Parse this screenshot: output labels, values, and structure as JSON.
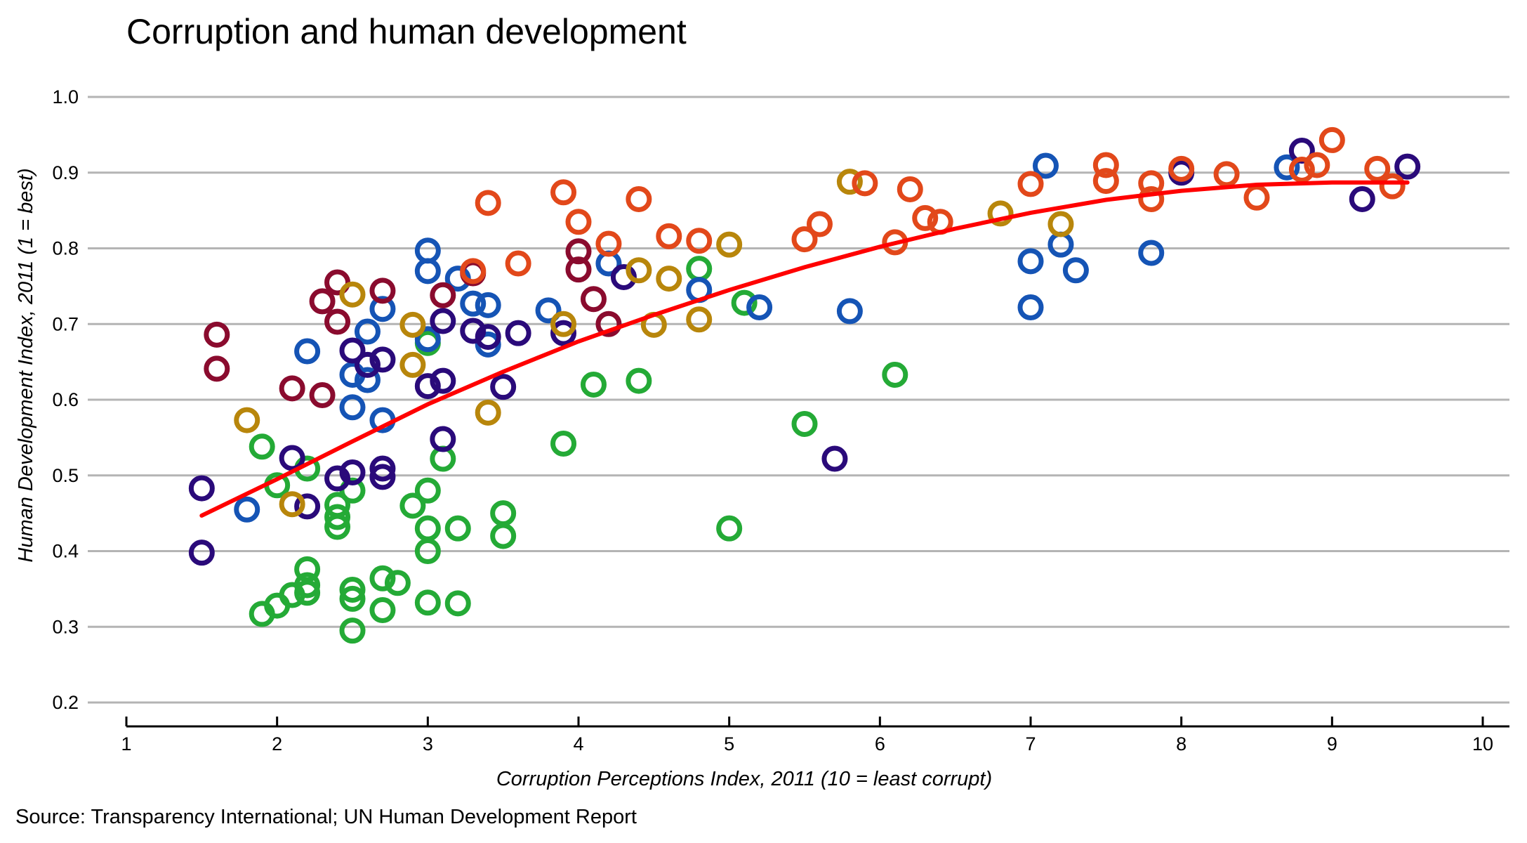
{
  "chart_data": {
    "type": "scatter",
    "title": "Corruption and human development",
    "xlabel": "Corruption Perceptions Index, 2011 (10 = least corrupt)",
    "ylabel": "Human Development Index, 2011 (1 = best)",
    "source": "Source: Transparency International; UN Human Development Report",
    "xlim": [
      1,
      10
    ],
    "ylim": [
      0.2,
      1.0
    ],
    "x_ticks": [
      1,
      2,
      3,
      4,
      5,
      6,
      7,
      8,
      9,
      10
    ],
    "y_ticks": [
      0.2,
      0.3,
      0.4,
      0.5,
      0.6,
      0.7,
      0.8,
      0.9,
      1.0
    ],
    "y_tick_labels": [
      "0.2",
      "0.3",
      "0.4",
      "0.5",
      "0.6",
      "0.7",
      "0.8",
      "0.9",
      "1.0"
    ],
    "grid": "horizontal",
    "series": [
      {
        "color": "#24AA36",
        "points": [
          [
            1.9,
            0.317
          ],
          [
            2.0,
            0.328
          ],
          [
            2.1,
            0.342
          ],
          [
            2.2,
            0.345
          ],
          [
            2.2,
            0.355
          ],
          [
            2.2,
            0.376
          ],
          [
            1.9,
            0.538
          ],
          [
            2.0,
            0.487
          ],
          [
            2.2,
            0.509
          ],
          [
            2.4,
            0.432
          ],
          [
            2.4,
            0.445
          ],
          [
            2.4,
            0.461
          ],
          [
            2.5,
            0.295
          ],
          [
            2.5,
            0.337
          ],
          [
            2.5,
            0.349
          ],
          [
            2.5,
            0.48
          ],
          [
            2.7,
            0.322
          ],
          [
            2.7,
            0.364
          ],
          [
            2.8,
            0.358
          ],
          [
            2.9,
            0.46
          ],
          [
            3.0,
            0.43
          ],
          [
            3.0,
            0.4
          ],
          [
            3.0,
            0.332
          ],
          [
            3.0,
            0.48
          ],
          [
            3.1,
            0.522
          ],
          [
            3.2,
            0.43
          ],
          [
            3.2,
            0.331
          ],
          [
            3.5,
            0.42
          ],
          [
            3.5,
            0.45
          ],
          [
            3.9,
            0.542
          ],
          [
            4.1,
            0.62
          ],
          [
            4.4,
            0.625
          ],
          [
            4.8,
            0.773
          ],
          [
            5.0,
            0.43
          ],
          [
            5.1,
            0.728
          ],
          [
            5.5,
            0.568
          ],
          [
            6.1,
            0.633
          ],
          [
            3.0,
            0.675
          ]
        ]
      },
      {
        "color": "#1554B5",
        "points": [
          [
            1.8,
            0.455
          ],
          [
            2.2,
            0.664
          ],
          [
            2.5,
            0.59
          ],
          [
            2.5,
            0.633
          ],
          [
            2.6,
            0.626
          ],
          [
            2.6,
            0.69
          ],
          [
            2.7,
            0.573
          ],
          [
            2.7,
            0.72
          ],
          [
            3.0,
            0.797
          ],
          [
            3.0,
            0.77
          ],
          [
            3.0,
            0.68
          ],
          [
            3.2,
            0.76
          ],
          [
            3.3,
            0.727
          ],
          [
            3.4,
            0.725
          ],
          [
            3.4,
            0.673
          ],
          [
            3.8,
            0.718
          ],
          [
            4.2,
            0.78
          ],
          [
            4.8,
            0.745
          ],
          [
            5.2,
            0.722
          ],
          [
            5.8,
            0.717
          ],
          [
            7.0,
            0.783
          ],
          [
            7.0,
            0.722
          ],
          [
            7.1,
            0.909
          ],
          [
            7.2,
            0.805
          ],
          [
            7.3,
            0.771
          ],
          [
            7.8,
            0.794
          ],
          [
            8.7,
            0.907
          ]
        ]
      },
      {
        "color": "#2A0A7A",
        "points": [
          [
            1.5,
            0.483
          ],
          [
            1.5,
            0.398
          ],
          [
            2.1,
            0.523
          ],
          [
            2.2,
            0.459
          ],
          [
            2.4,
            0.496
          ],
          [
            2.5,
            0.504
          ],
          [
            2.5,
            0.665
          ],
          [
            2.6,
            0.646
          ],
          [
            2.7,
            0.498
          ],
          [
            2.7,
            0.509
          ],
          [
            2.7,
            0.653
          ],
          [
            3.0,
            0.618
          ],
          [
            3.1,
            0.548
          ],
          [
            3.1,
            0.625
          ],
          [
            3.1,
            0.704
          ],
          [
            3.3,
            0.691
          ],
          [
            3.4,
            0.683
          ],
          [
            3.5,
            0.617
          ],
          [
            3.6,
            0.688
          ],
          [
            3.9,
            0.688
          ],
          [
            4.3,
            0.762
          ],
          [
            5.7,
            0.522
          ],
          [
            8.0,
            0.9
          ],
          [
            8.8,
            0.929
          ],
          [
            9.2,
            0.865
          ],
          [
            9.5,
            0.908
          ]
        ]
      },
      {
        "color": "#8A0B2E",
        "points": [
          [
            1.6,
            0.686
          ],
          [
            1.6,
            0.641
          ],
          [
            2.1,
            0.615
          ],
          [
            2.3,
            0.606
          ],
          [
            2.3,
            0.73
          ],
          [
            2.4,
            0.703
          ],
          [
            2.4,
            0.755
          ],
          [
            2.7,
            0.744
          ],
          [
            3.1,
            0.738
          ],
          [
            3.3,
            0.767
          ],
          [
            4.0,
            0.796
          ],
          [
            4.0,
            0.772
          ],
          [
            4.1,
            0.733
          ],
          [
            4.2,
            0.7
          ]
        ]
      },
      {
        "color": "#B8860B",
        "points": [
          [
            1.8,
            0.573
          ],
          [
            2.1,
            0.462
          ],
          [
            2.5,
            0.739
          ],
          [
            2.9,
            0.646
          ],
          [
            2.9,
            0.699
          ],
          [
            3.4,
            0.583
          ],
          [
            3.9,
            0.7
          ],
          [
            4.4,
            0.771
          ],
          [
            4.5,
            0.699
          ],
          [
            4.6,
            0.76
          ],
          [
            4.8,
            0.706
          ],
          [
            5.0,
            0.805
          ],
          [
            5.8,
            0.888
          ],
          [
            6.8,
            0.846
          ],
          [
            7.2,
            0.832
          ]
        ]
      },
      {
        "color": "#E2481A",
        "points": [
          [
            3.3,
            0.77
          ],
          [
            3.4,
            0.86
          ],
          [
            3.6,
            0.78
          ],
          [
            3.9,
            0.874
          ],
          [
            4.0,
            0.835
          ],
          [
            4.2,
            0.806
          ],
          [
            4.4,
            0.865
          ],
          [
            4.6,
            0.816
          ],
          [
            4.8,
            0.81
          ],
          [
            5.5,
            0.812
          ],
          [
            5.6,
            0.832
          ],
          [
            5.9,
            0.886
          ],
          [
            6.1,
            0.808
          ],
          [
            6.2,
            0.878
          ],
          [
            6.3,
            0.84
          ],
          [
            6.4,
            0.835
          ],
          [
            7.0,
            0.885
          ],
          [
            7.5,
            0.91
          ],
          [
            7.5,
            0.889
          ],
          [
            7.8,
            0.886
          ],
          [
            7.8,
            0.865
          ],
          [
            8.0,
            0.905
          ],
          [
            8.3,
            0.898
          ],
          [
            8.5,
            0.867
          ],
          [
            8.8,
            0.904
          ],
          [
            8.9,
            0.91
          ],
          [
            9.0,
            0.943
          ],
          [
            9.3,
            0.905
          ],
          [
            9.4,
            0.882
          ]
        ]
      }
    ],
    "trend": {
      "color": "#FF0000",
      "points": [
        [
          1.5,
          0.447
        ],
        [
          2.0,
          0.495
        ],
        [
          2.5,
          0.545
        ],
        [
          3.0,
          0.594
        ],
        [
          3.5,
          0.637
        ],
        [
          4.0,
          0.677
        ],
        [
          4.5,
          0.712
        ],
        [
          5.0,
          0.745
        ],
        [
          5.5,
          0.775
        ],
        [
          6.0,
          0.802
        ],
        [
          6.5,
          0.826
        ],
        [
          7.0,
          0.847
        ],
        [
          7.5,
          0.864
        ],
        [
          8.0,
          0.876
        ],
        [
          8.5,
          0.884
        ],
        [
          9.0,
          0.887
        ],
        [
          9.5,
          0.887
        ]
      ]
    }
  }
}
